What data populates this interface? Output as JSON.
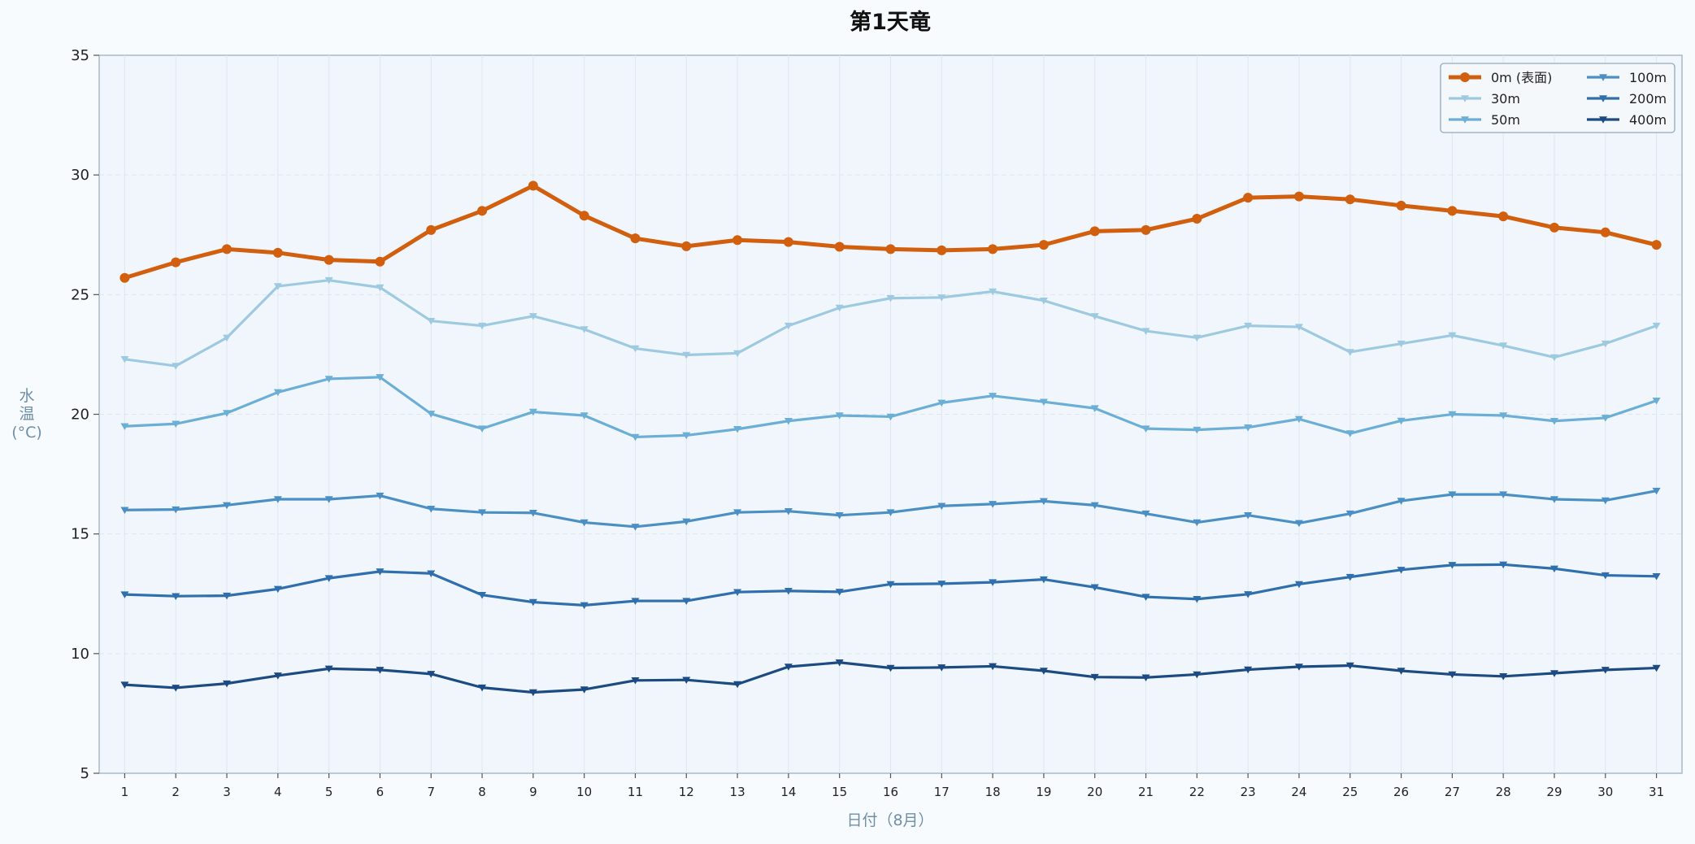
{
  "chart_data": {
    "type": "line",
    "title": "第1天竜",
    "xlabel": "日付（8月）",
    "ylabel": "水温(°C)",
    "ylabel_lines": [
      "水",
      "温",
      "(°C)"
    ],
    "x": [
      1,
      2,
      3,
      4,
      5,
      6,
      7,
      8,
      9,
      10,
      11,
      12,
      13,
      14,
      15,
      16,
      17,
      18,
      19,
      20,
      21,
      22,
      23,
      24,
      25,
      26,
      27,
      28,
      29,
      30,
      31
    ],
    "xlim": [
      0.5,
      31.5
    ],
    "ylim": [
      5,
      35
    ],
    "yticks": [
      5,
      10,
      15,
      20,
      25,
      30,
      35
    ],
    "grid": true,
    "legend_position": "top-right",
    "legend_columns": 2,
    "series": [
      {
        "name": "0m (表面)",
        "color": "#d15f0e",
        "marker": "circle",
        "emphasis": true,
        "values": [
          25.7,
          26.35,
          26.9,
          26.75,
          26.45,
          26.38,
          27.7,
          28.5,
          29.55,
          28.3,
          27.35,
          27.02,
          27.28,
          27.2,
          27.0,
          26.9,
          26.85,
          26.9,
          27.08,
          27.65,
          27.7,
          28.17,
          29.05,
          29.1,
          28.98,
          28.72,
          28.5,
          28.27,
          27.8,
          27.6,
          27.08
        ]
      },
      {
        "name": "30m",
        "color": "#9ecae1",
        "marker": "triangle-down",
        "values": [
          22.3,
          22.02,
          23.2,
          25.35,
          25.6,
          25.3,
          23.9,
          23.7,
          24.1,
          23.55,
          22.75,
          22.48,
          22.55,
          23.7,
          24.45,
          24.85,
          24.88,
          25.13,
          24.75,
          24.1,
          23.48,
          23.2,
          23.7,
          23.65,
          22.6,
          22.95,
          23.3,
          22.87,
          22.38,
          22.95,
          23.7
        ]
      },
      {
        "name": "50m",
        "color": "#6baed6",
        "marker": "triangle-down",
        "values": [
          19.5,
          19.6,
          20.05,
          20.92,
          21.48,
          21.55,
          20.02,
          19.4,
          20.1,
          19.95,
          19.05,
          19.12,
          19.38,
          19.72,
          19.95,
          19.9,
          20.48,
          20.77,
          20.52,
          20.25,
          19.4,
          19.35,
          19.45,
          19.8,
          19.2,
          19.73,
          20.0,
          19.95,
          19.72,
          19.85,
          20.57
        ]
      },
      {
        "name": "100m",
        "color": "#4a90c4",
        "marker": "triangle-down",
        "values": [
          16.0,
          16.02,
          16.2,
          16.45,
          16.45,
          16.6,
          16.05,
          15.9,
          15.88,
          15.48,
          15.3,
          15.52,
          15.9,
          15.95,
          15.78,
          15.9,
          16.17,
          16.25,
          16.37,
          16.2,
          15.85,
          15.48,
          15.78,
          15.45,
          15.85,
          16.38,
          16.65,
          16.65,
          16.45,
          16.4,
          16.8
        ]
      },
      {
        "name": "200m",
        "color": "#2f6fad",
        "marker": "triangle-down",
        "values": [
          12.47,
          12.4,
          12.42,
          12.7,
          13.15,
          13.43,
          13.35,
          12.45,
          12.15,
          12.02,
          12.2,
          12.2,
          12.57,
          12.62,
          12.58,
          12.9,
          12.92,
          12.98,
          13.1,
          12.77,
          12.37,
          12.28,
          12.48,
          12.9,
          13.2,
          13.5,
          13.7,
          13.72,
          13.55,
          13.27,
          13.23
        ]
      },
      {
        "name": "400m",
        "color": "#1c4a82",
        "marker": "triangle-down",
        "values": [
          8.7,
          8.57,
          8.75,
          9.08,
          9.37,
          9.32,
          9.15,
          8.58,
          8.38,
          8.5,
          8.88,
          8.9,
          8.72,
          9.45,
          9.63,
          9.4,
          9.42,
          9.47,
          9.28,
          9.02,
          9.0,
          9.13,
          9.33,
          9.45,
          9.5,
          9.28,
          9.13,
          9.05,
          9.18,
          9.32,
          9.4
        ]
      }
    ]
  }
}
